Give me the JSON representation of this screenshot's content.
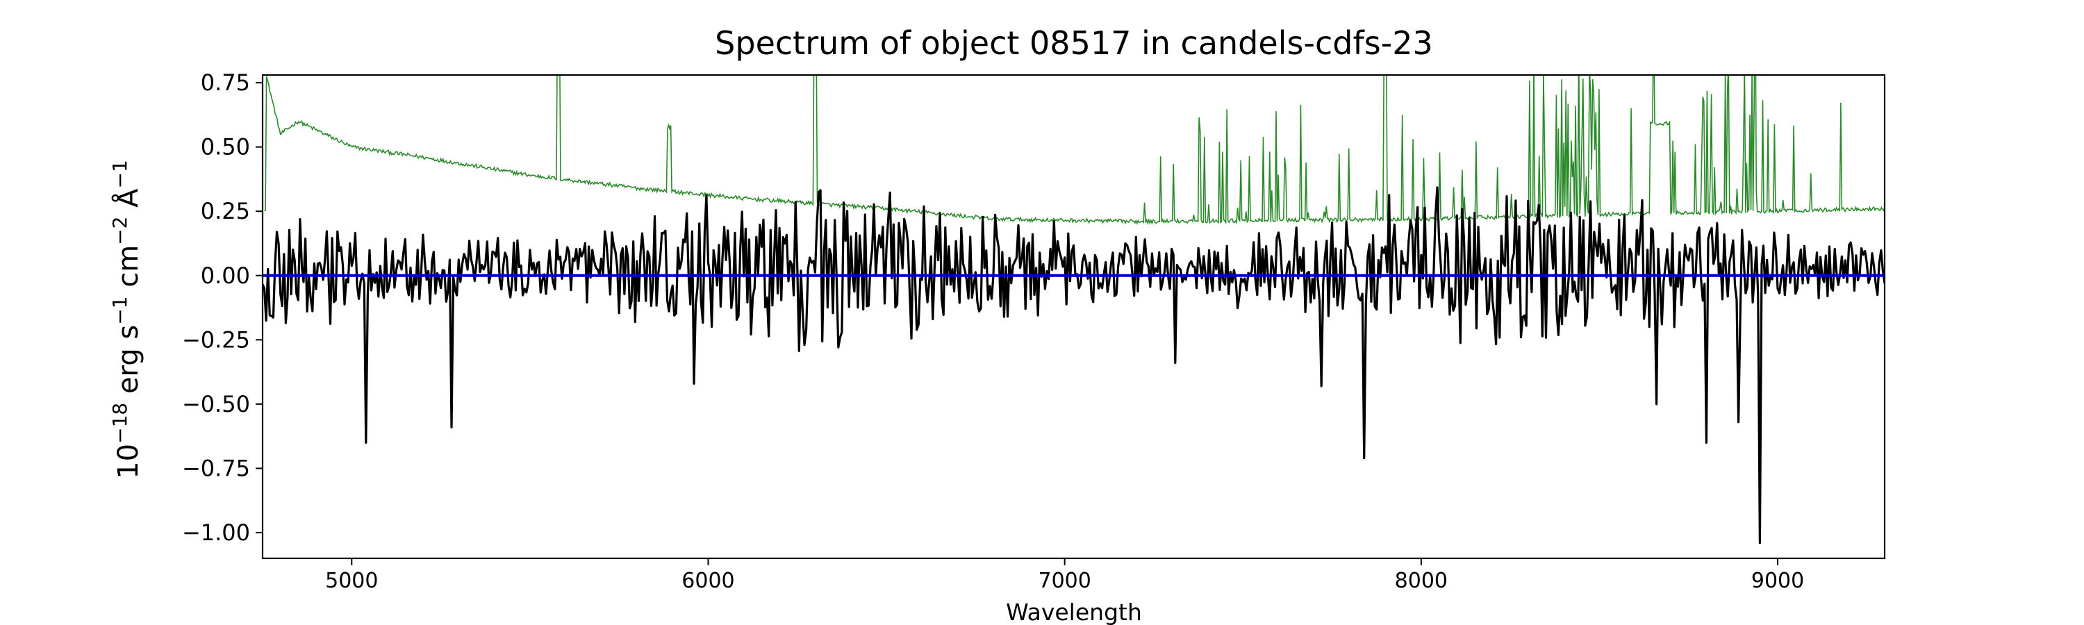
{
  "chart_data": {
    "type": "line",
    "title": "Spectrum of object 08517 in candels-cdfs-23",
    "xlabel": "Wavelength",
    "ylabel_base": "10",
    "ylabel_exp": "−18",
    "ylabel_rest": " erg s",
    "ylabel_s_exp": "−1",
    "ylabel_cm": " cm",
    "ylabel_cm_exp": "−2",
    "ylabel_ang": " Å",
    "ylabel_ang_exp": "−1",
    "xlim": [
      4750,
      9300
    ],
    "ylim": [
      -1.1,
      0.78
    ],
    "x_ticks": [
      5000,
      6000,
      7000,
      8000,
      9000
    ],
    "x_tick_labels": [
      "5000",
      "6000",
      "7000",
      "8000",
      "9000"
    ],
    "y_ticks": [
      0.75,
      0.5,
      0.25,
      0.0,
      -0.25,
      -0.5,
      -0.75,
      -1.0
    ],
    "y_tick_labels": [
      "0.75",
      "0.50",
      "0.25",
      "0.00",
      "−0.25",
      "−0.50",
      "−0.75",
      "−1.00"
    ],
    "grid": false,
    "legend": "none",
    "colors": {
      "flux": "#000000",
      "error": "#2a8a2a",
      "zero": "#0000cc"
    },
    "series": [
      {
        "role": "flux",
        "style": "black thick line",
        "sampling_step": 5,
        "x_start": 4750,
        "features": [
          {
            "x": 5040,
            "y": -0.65
          },
          {
            "x": 5280,
            "y": -0.59
          },
          {
            "x": 5960,
            "y": -0.42
          },
          {
            "x": 6270,
            "y": -0.27
          },
          {
            "x": 7310,
            "y": -0.34
          },
          {
            "x": 7720,
            "y": -0.43
          },
          {
            "x": 7840,
            "y": -0.71
          },
          {
            "x": 8660,
            "y": -0.5
          },
          {
            "x": 8800,
            "y": -0.65
          },
          {
            "x": 8950,
            "y": -1.04
          },
          {
            "x": 8890,
            "y": -0.57
          }
        ]
      },
      {
        "role": "error",
        "style": "thin green line",
        "features": [
          {
            "x": 4760,
            "y": 0.78
          },
          {
            "x": 4800,
            "y": 0.55
          },
          {
            "x": 4850,
            "y": 0.6
          },
          {
            "x": 5000,
            "y": 0.5
          },
          {
            "x": 5200,
            "y": 0.46
          },
          {
            "x": 5500,
            "y": 0.39
          },
          {
            "x": 5800,
            "y": 0.34
          },
          {
            "x": 6100,
            "y": 0.3
          },
          {
            "x": 6500,
            "y": 0.26
          },
          {
            "x": 6800,
            "y": 0.22
          },
          {
            "x": 7200,
            "y": 0.21
          },
          {
            "x": 8000,
            "y": 0.22
          },
          {
            "x": 8600,
            "y": 0.24
          },
          {
            "x": 9300,
            "y": 0.26
          }
        ]
      },
      {
        "role": "zero",
        "style": "blue line",
        "values": [
          {
            "x": 4750,
            "y": 0.0
          },
          {
            "x": 9300,
            "y": 0.0
          }
        ]
      }
    ]
  }
}
